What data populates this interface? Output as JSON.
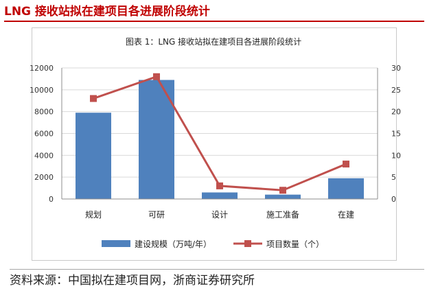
{
  "header": {
    "title": "LNG 接收站拟在建项目各进展阶段统计"
  },
  "source": {
    "text": "资料来源：中国拟在建项目网，浙商证券研究所"
  },
  "chart_data": {
    "type": "bar",
    "title": "图表 1：LNG 接收站拟在建项目各进展阶段统计",
    "categories": [
      "规划",
      "可研",
      "设计",
      "施工准备",
      "在建"
    ],
    "series": [
      {
        "name": "建设规模（万吨/年）",
        "type": "bar",
        "axis": "left",
        "color": "#4f81bd",
        "values": [
          7900,
          10900,
          600,
          400,
          1900
        ]
      },
      {
        "name": "项目数量（个）",
        "type": "line",
        "axis": "right",
        "color": "#c0504d",
        "values": [
          23,
          28,
          3,
          2,
          8
        ]
      }
    ],
    "y_left": {
      "min": 0,
      "max": 12000,
      "ticks": [
        0,
        2000,
        4000,
        6000,
        8000,
        10000,
        12000
      ]
    },
    "y_right": {
      "min": 0,
      "max": 30,
      "ticks": [
        0,
        5,
        10,
        15,
        20,
        25,
        30
      ]
    },
    "grid": true,
    "legend": "bottom"
  }
}
